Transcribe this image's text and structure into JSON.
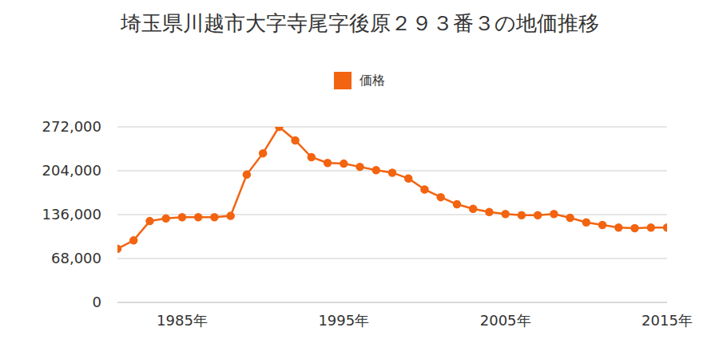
{
  "chart_data": {
    "type": "line",
    "title": "埼玉県川越市大字寺尾字後原２９３番３の地価推移",
    "x": [
      1981,
      1982,
      1983,
      1984,
      1985,
      1986,
      1987,
      1988,
      1989,
      1990,
      1991,
      1992,
      1993,
      1994,
      1995,
      1996,
      1997,
      1998,
      1999,
      2000,
      2001,
      2002,
      2003,
      2004,
      2005,
      2006,
      2007,
      2008,
      2009,
      2010,
      2011,
      2012,
      2013,
      2014,
      2015
    ],
    "series": [
      {
        "name": "価格",
        "color": "#f26410",
        "marker": "circle",
        "values": [
          83000,
          96000,
          126000,
          130000,
          132000,
          132000,
          132000,
          134000,
          198000,
          231000,
          272000,
          251000,
          225000,
          216000,
          215000,
          210000,
          205000,
          201000,
          192000,
          175000,
          163000,
          152000,
          145000,
          140000,
          137000,
          135000,
          135000,
          137000,
          131000,
          124000,
          120000,
          116000,
          115000,
          116000,
          116000
        ]
      }
    ],
    "xlim": [
      1981,
      2015
    ],
    "xticks": [
      {
        "value": 1985,
        "label": "1985年"
      },
      {
        "value": 1995,
        "label": "1995年"
      },
      {
        "value": 2005,
        "label": "2005年"
      },
      {
        "value": 2015,
        "label": "2015年"
      }
    ],
    "ylim": [
      0,
      272000
    ],
    "yticks": [
      0,
      {
        "value": 68000,
        "label": "68,000"
      },
      {
        "value": 136000,
        "label": "136,000"
      },
      {
        "value": 204000,
        "label": "204,000"
      },
      {
        "value": 272000,
        "label": "272,000"
      }
    ],
    "grid": true,
    "legend": "top"
  }
}
